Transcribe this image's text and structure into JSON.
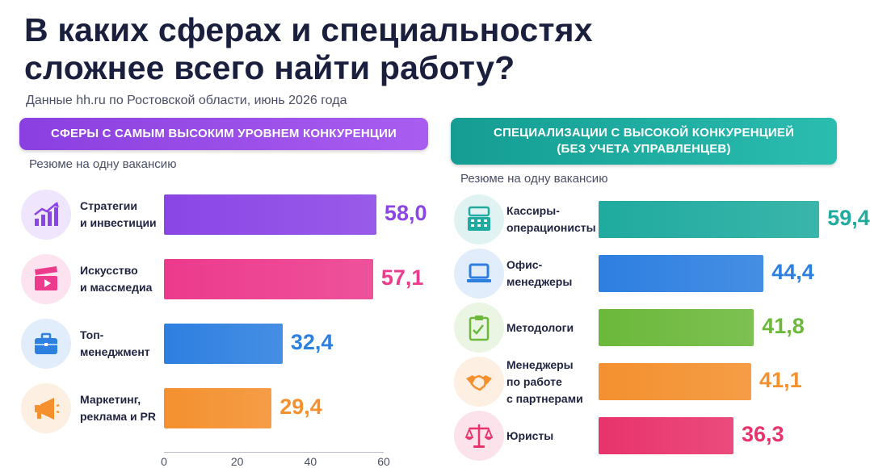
{
  "title_line1": "В каких сферах и специальностях",
  "title_line2": "сложнее всего найти работу?",
  "subtitle": "Данные hh.ru по Ростовской области, июнь 2026 года",
  "chart_data": [
    {
      "type": "bar",
      "title": "СФЕРЫ С САМЫМ ВЫСОКИМ УРОВНЕМ КОНКУРЕНЦИИ",
      "ylabel": "Резюме на одну вакансию",
      "categories": [
        "Стратегии\nи инвестиции",
        "Искусство\nи массмедиа",
        "Топ-\nменеджмент",
        "Маркетинг,\nреклама и PR"
      ],
      "values": [
        58.0,
        57.1,
        32.4,
        29.4
      ],
      "value_labels": [
        "58,0",
        "57,1",
        "32,4",
        "29,4"
      ],
      "colors": [
        "#8b45e6",
        "#ec3a8d",
        "#2d7fe0",
        "#f4902e"
      ],
      "icons": [
        "chart-growth-icon",
        "film-clapper-icon",
        "briefcase-icon",
        "megaphone-icon"
      ],
      "xlim": [
        0,
        60
      ],
      "ticks": [
        "0",
        "20",
        "40",
        "60"
      ]
    },
    {
      "type": "bar",
      "title_line1": "СПЕЦИАЛИЗАЦИИ С ВЫСОКОЙ КОНКУРЕНЦИЕЙ",
      "title_line2": "(БЕЗ УЧЕТА УПРАВЛЕНЦЕВ)",
      "ylabel": "Резюме на одну вакансию",
      "categories": [
        "Кассиры-\nоперационисты",
        "Офис-\nменеджеры",
        "Методологи",
        "Менеджеры\nпо работе\nс партнерами",
        "Юристы"
      ],
      "values": [
        59.4,
        44.4,
        41.8,
        41.1,
        36.3
      ],
      "value_labels": [
        "59,4",
        "44,4",
        "41,8",
        "41,1",
        "36,3"
      ],
      "colors": [
        "#1fab9f",
        "#2d7fe0",
        "#6bb83a",
        "#f4902e",
        "#e8336b"
      ],
      "icons": [
        "cash-register-icon",
        "laptop-icon",
        "clipboard-icon",
        "handshake-icon",
        "scales-icon"
      ],
      "xlim": [
        0,
        60
      ]
    }
  ]
}
